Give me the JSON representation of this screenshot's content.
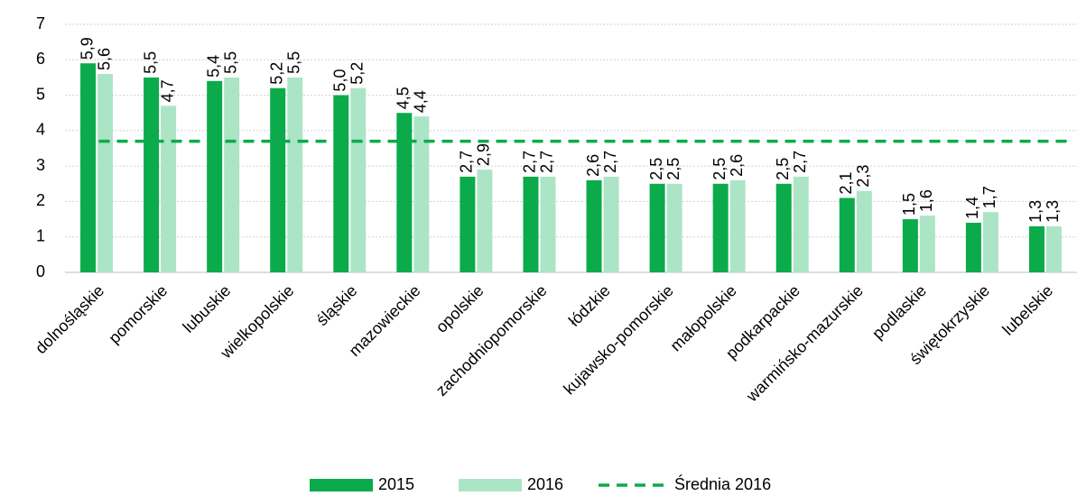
{
  "chart_data": {
    "type": "bar",
    "categories": [
      "dolnośląskie",
      "pomorskie",
      "lubuskie",
      "wielkopolskie",
      "śląskie",
      "mazowieckie",
      "opolskie",
      "zachodniopomorskie",
      "łódzkie",
      "kujawsko-pomorskie",
      "małopolskie",
      "podkarpackie",
      "warmińsko-mazurskie",
      "podlaskie",
      "świętokrzyskie",
      "lubelskie"
    ],
    "series": [
      {
        "name": "2015",
        "color": "#0bab4b",
        "values": [
          5.9,
          5.5,
          5.4,
          5.2,
          5.0,
          4.5,
          2.7,
          2.7,
          2.6,
          2.5,
          2.5,
          2.5,
          2.1,
          1.5,
          1.4,
          1.3
        ],
        "value_labels": [
          "5,9",
          "5,5",
          "5,4",
          "5,2",
          "5,0",
          "4,5",
          "2,7",
          "2,7",
          "2,6",
          "2,5",
          "2,5",
          "2,5",
          "2,1",
          "1,5",
          "1,4",
          "1,3"
        ]
      },
      {
        "name": "2016",
        "color": "#ace5c6",
        "values": [
          5.6,
          4.7,
          5.5,
          5.5,
          5.2,
          4.4,
          2.9,
          2.7,
          2.7,
          2.5,
          2.6,
          2.7,
          2.3,
          1.6,
          1.7,
          1.3
        ],
        "value_labels": [
          "5,6",
          "4,7",
          "5,5",
          "5,5",
          "5,2",
          "4,4",
          "2,9",
          "2,7",
          "2,7",
          "2,5",
          "2,6",
          "2,7",
          "2,3",
          "1,6",
          "1,7",
          "1,3"
        ]
      }
    ],
    "average": {
      "name": "Średnia 2016",
      "value": 3.7,
      "color": "#0bab4b"
    },
    "ylim": [
      0,
      7
    ],
    "yticks": [
      0,
      1,
      2,
      3,
      4,
      5,
      6,
      7
    ],
    "grid": true,
    "legend": "bottom"
  }
}
